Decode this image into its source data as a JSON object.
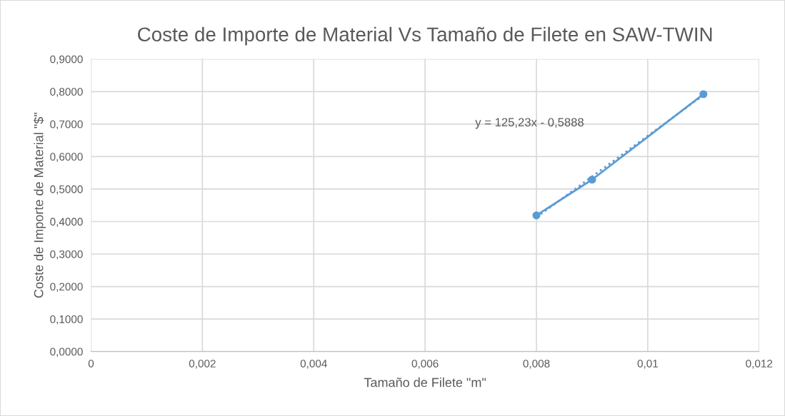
{
  "chart_data": {
    "type": "line",
    "title": "Coste de Importe de Material Vs Tamaño de Filete en SAW-TWIN",
    "xlabel": "Tamaño de Filete \"m\"",
    "ylabel": "Coste de Importe de Material \"$\"",
    "x": [
      0.008,
      0.009,
      0.011
    ],
    "series": [
      {
        "color": "#5b9bd5",
        "values": [
          0.419,
          0.529,
          0.792
        ],
        "marker": "circle",
        "line_style": "solid"
      },
      {
        "type": "line",
        "color": "#5b9bd5",
        "x": [
          0.008,
          0.011
        ],
        "values": [
          0.413,
          0.789
        ],
        "marker": "none",
        "line_style": "dotted"
      }
    ],
    "annotations": [
      "y = 125,23x - 0,5888"
    ],
    "xlim": [
      0,
      0.012
    ],
    "xticks": [
      0,
      {
        "value": 0.002,
        "label": "0,002"
      },
      {
        "value": 0.004,
        "label": "0,004"
      },
      {
        "value": 0.006,
        "label": "0,006"
      },
      {
        "value": 0.008,
        "label": "0,008"
      },
      {
        "value": 0.01,
        "label": "0,01"
      },
      {
        "value": 0.012,
        "label": "0,012"
      }
    ],
    "ylim": [
      0,
      0.9
    ],
    "yticks": [
      {
        "value": 0,
        "label": "0,0000"
      },
      {
        "value": 0.1,
        "label": "0,1000"
      },
      {
        "value": 0.2,
        "label": "0,2000"
      },
      {
        "value": 0.3,
        "label": "0,3000"
      },
      {
        "value": 0.4,
        "label": "0,4000"
      },
      {
        "value": 0.5,
        "label": "0,5000"
      },
      {
        "value": 0.6,
        "label": "0,6000"
      },
      {
        "value": 0.7,
        "label": "0,7000"
      },
      {
        "value": 0.8,
        "label": "0,8000"
      },
      {
        "value": 0.9,
        "label": "0,9000"
      }
    ],
    "grid": true,
    "legend": false
  }
}
